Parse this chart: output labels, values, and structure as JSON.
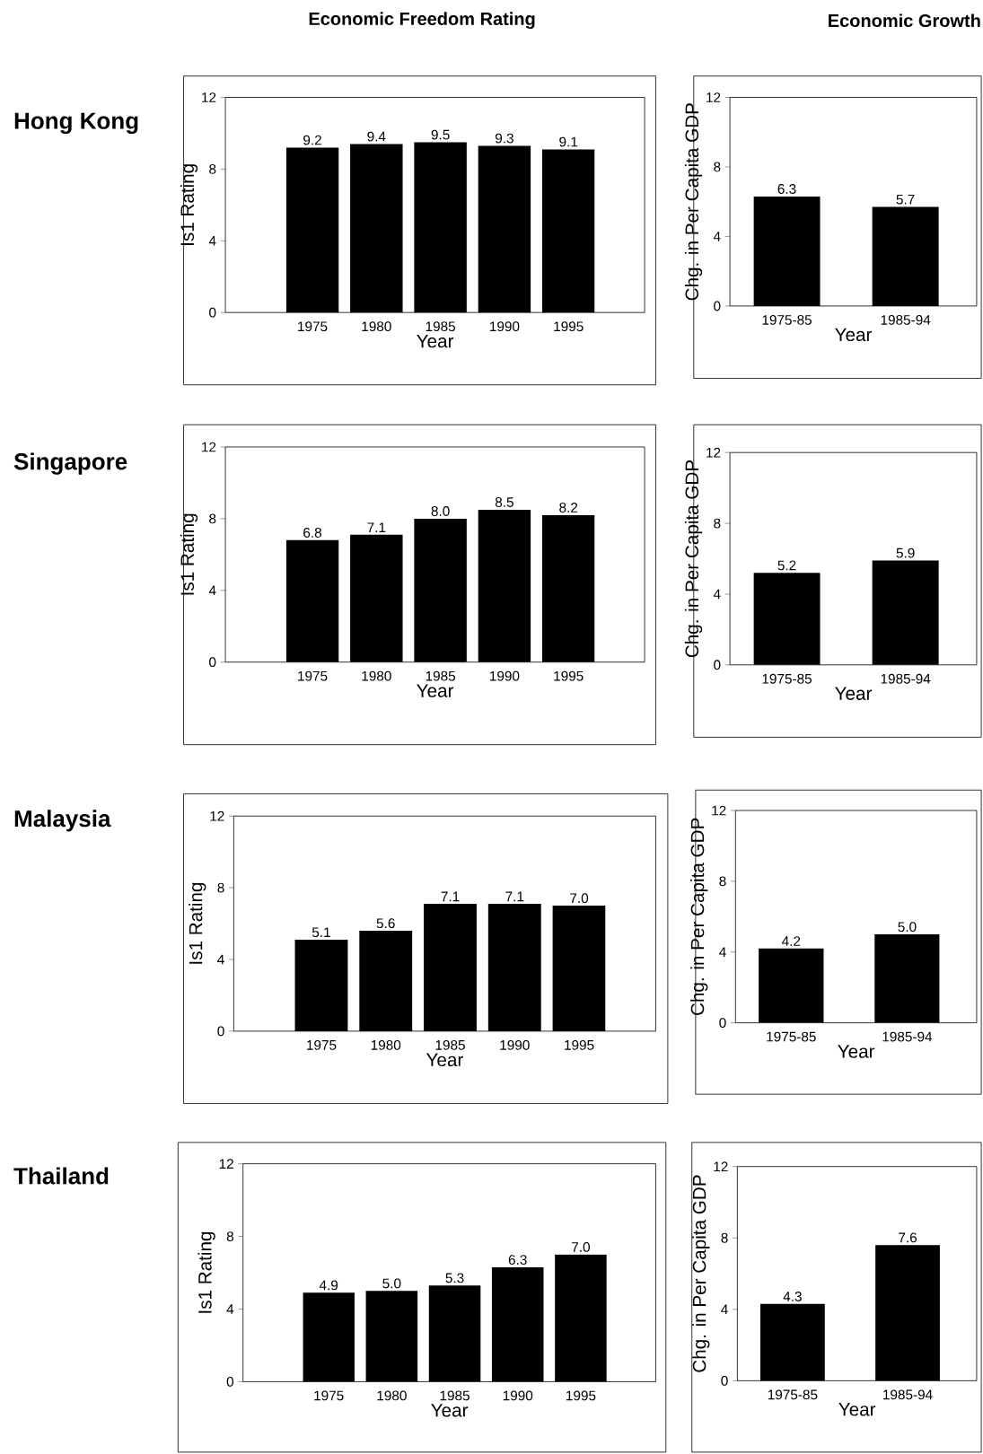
{
  "chart_data": [
    {
      "type": "bar",
      "title": "Economic Freedom Rating",
      "annotations": [
        "Hong Kong"
      ],
      "categories": [
        "1975",
        "1980",
        "1985",
        "1990",
        "1995"
      ],
      "values": [
        9.2,
        9.4,
        9.5,
        9.3,
        9.1
      ],
      "value_labels": [
        "9.2",
        "9.4",
        "9.5",
        "9.3",
        "9.1"
      ],
      "color": "#000000",
      "ylim": [
        0,
        12
      ],
      "yticks": [
        0,
        4,
        8,
        12
      ],
      "xlabel": "Year",
      "ylabel": "Is1 Rating"
    },
    {
      "type": "bar",
      "title": "Economic Growth",
      "categories": [
        "1975-85",
        "1985-94"
      ],
      "values": [
        6.3,
        5.7
      ],
      "value_labels": [
        "6.3",
        "5.7"
      ],
      "color": "#000000",
      "ylim": [
        0,
        12
      ],
      "yticks": [
        0,
        4,
        8,
        12
      ],
      "xlabel": "Year",
      "ylabel": "Chg. in Per Capita GDP"
    },
    {
      "type": "bar",
      "annotations": [
        "Singapore"
      ],
      "categories": [
        "1975",
        "1980",
        "1985",
        "1990",
        "1995"
      ],
      "values": [
        6.8,
        7.1,
        8.0,
        8.5,
        8.2
      ],
      "value_labels": [
        "6.8",
        "7.1",
        "8.0",
        "8.5",
        "8.2"
      ],
      "color": "#000000",
      "ylim": [
        0,
        12
      ],
      "yticks": [
        0,
        4,
        8,
        12
      ],
      "xlabel": "Year",
      "ylabel": "Is1 Rating"
    },
    {
      "type": "bar",
      "categories": [
        "1975-85",
        "1985-94"
      ],
      "values": [
        5.2,
        5.9
      ],
      "value_labels": [
        "5.2",
        "5.9"
      ],
      "color": "#000000",
      "ylim": [
        0,
        12
      ],
      "yticks": [
        0,
        4,
        8,
        12
      ],
      "xlabel": "Year",
      "ylabel": "Chg. in Per Capita GDP"
    },
    {
      "type": "bar",
      "annotations": [
        "Malaysia"
      ],
      "categories": [
        "1975",
        "1980",
        "1985",
        "1990",
        "1995"
      ],
      "values": [
        5.1,
        5.6,
        7.1,
        7.1,
        7.0
      ],
      "value_labels": [
        "5.1",
        "5.6",
        "7.1",
        "7.1",
        "7.0"
      ],
      "color": "#000000",
      "ylim": [
        0,
        12
      ],
      "yticks": [
        0,
        4,
        8,
        12
      ],
      "xlabel": "Year",
      "ylabel": "Is1 Rating"
    },
    {
      "type": "bar",
      "categories": [
        "1975-85",
        "1985-94"
      ],
      "values": [
        4.2,
        5.0
      ],
      "value_labels": [
        "4.2",
        "5.0"
      ],
      "color": "#000000",
      "ylim": [
        0,
        12
      ],
      "yticks": [
        0,
        4,
        8,
        12
      ],
      "xlabel": "Year",
      "ylabel": "Chg. in Per Capita GDP"
    },
    {
      "type": "bar",
      "annotations": [
        "Thailand"
      ],
      "categories": [
        "1975",
        "1980",
        "1985",
        "1990",
        "1995"
      ],
      "values": [
        4.9,
        5.0,
        5.3,
        6.3,
        7.0
      ],
      "value_labels": [
        "4.9",
        "5.0",
        "5.3",
        "6.3",
        "7.0"
      ],
      "color": "#000000",
      "ylim": [
        0,
        12
      ],
      "yticks": [
        0,
        4,
        8,
        12
      ],
      "xlabel": "Year",
      "ylabel": "Is1 Rating"
    },
    {
      "type": "bar",
      "categories": [
        "1975-85",
        "1985-94"
      ],
      "values": [
        4.3,
        7.6
      ],
      "value_labels": [
        "4.3",
        "7.6"
      ],
      "color": "#000000",
      "ylim": [
        0,
        12
      ],
      "yticks": [
        0,
        4,
        8,
        12
      ],
      "xlabel": "Year",
      "ylabel": "Chg. in Per Capita GDP"
    }
  ]
}
